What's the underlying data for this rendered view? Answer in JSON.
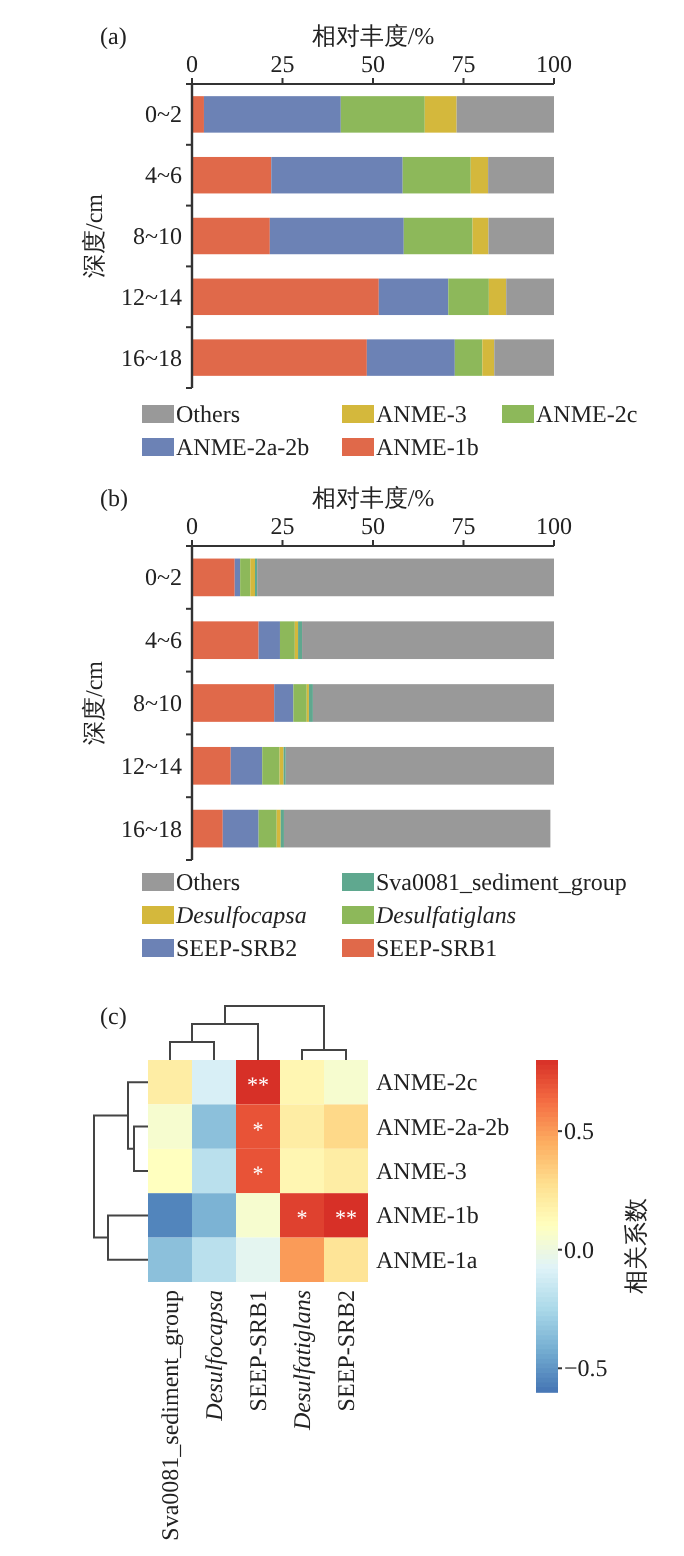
{
  "chart_data": [
    {
      "type": "bar",
      "title": "(a)",
      "xlabel": "相对丰度/%",
      "ylabel": "深度/cm",
      "orientation": "horizontal",
      "stacked": true,
      "legend": "bottom",
      "categories": [
        "0~2",
        "4~6",
        "8~10",
        "12~14",
        "16~18"
      ],
      "xlim": [
        0,
        100
      ],
      "xticks": [
        0,
        25,
        50,
        75,
        100
      ],
      "series": [
        {
          "name": "ANME-1b",
          "color": "#e0694a",
          "values": [
            3.3,
            21.9,
            21.5,
            51.6,
            48.3
          ]
        },
        {
          "name": "ANME-2a-2b",
          "color": "#6c82b5",
          "values": [
            37.8,
            36.3,
            37.0,
            19.2,
            24.3
          ]
        },
        {
          "name": "ANME-2c",
          "color": "#8db85a",
          "values": [
            23.2,
            18.8,
            19.0,
            11.2,
            7.6
          ]
        },
        {
          "name": "ANME-3",
          "color": "#d4b83c",
          "values": [
            8.8,
            4.8,
            4.4,
            4.8,
            3.3
          ]
        },
        {
          "name": "Others",
          "color": "#999999",
          "values": [
            26.9,
            18.2,
            18.1,
            13.2,
            16.5
          ]
        }
      ]
    },
    {
      "type": "bar",
      "title": "(b)",
      "xlabel": "相对丰度/%",
      "ylabel": "深度/cm",
      "orientation": "horizontal",
      "stacked": true,
      "legend": "bottom",
      "categories": [
        "0~2",
        "4~6",
        "8~10",
        "12~14",
        "16~18"
      ],
      "xlim": [
        0,
        100
      ],
      "xticks": [
        0,
        25,
        50,
        75,
        100
      ],
      "series": [
        {
          "name": "SEEP-SRB1",
          "color": "#e0694a",
          "values": [
            11.8,
            18.4,
            22.7,
            10.7,
            8.5
          ]
        },
        {
          "name": "SEEP-SRB2",
          "color": "#6c82b5",
          "values": [
            1.5,
            5.9,
            5.3,
            8.7,
            9.9
          ]
        },
        {
          "name": "*Desulfatiglans*",
          "color": "#8db85a",
          "values": [
            2.8,
            4.1,
            3.7,
            4.8,
            5.0
          ]
        },
        {
          "name": "*Desulfocapsa*",
          "color": "#d4b83c",
          "values": [
            1.3,
            0.9,
            0.6,
            1.1,
            1.1
          ]
        },
        {
          "name": "Sva0081_sediment_group",
          "color": "#5fa88f",
          "values": [
            0.6,
            1.1,
            1.1,
            0.6,
            0.9
          ]
        },
        {
          "name": "Others",
          "color": "#999999",
          "values": [
            82.0,
            69.6,
            66.6,
            74.1,
            73.6
          ]
        }
      ]
    },
    {
      "type": "heatmap",
      "title": "(c)",
      "clabel": "相关系数",
      "categories": [
        "Sva0081_sediment_group",
        "*Desulfocapsa*",
        "SEEP-SRB1",
        "*Desulfatiglans*",
        "SEEP-SRB2"
      ],
      "y_categories": [
        "ANME-2c",
        "ANME-2a-2b",
        "ANME-3",
        "ANME-1b",
        "ANME-1a"
      ],
      "cells": [
        [
          0.2,
          -0.1,
          0.8,
          0.15,
          0.05
        ],
        [
          0.05,
          -0.35,
          0.7,
          0.2,
          0.3
        ],
        [
          0.1,
          -0.2,
          0.7,
          0.15,
          0.2
        ],
        [
          -0.55,
          -0.4,
          0.05,
          0.75,
          0.85
        ],
        [
          -0.35,
          -0.2,
          -0.05,
          0.5,
          0.25
        ]
      ],
      "cell_labels": [
        [
          null,
          null,
          "**",
          null,
          null
        ],
        [
          null,
          null,
          "*",
          null,
          null
        ],
        [
          null,
          null,
          "*",
          null,
          null
        ],
        [
          null,
          null,
          null,
          "*",
          "**"
        ],
        [
          null,
          null,
          null,
          null,
          null
        ]
      ],
      "clim": [
        -0.6,
        0.8
      ],
      "cticks": [
        {
          "value": -0.5,
          "label": "−0.5"
        },
        {
          "value": 0,
          "label": "0.0"
        },
        {
          "value": 0.5,
          "label": "0.5"
        }
      ]
    }
  ]
}
